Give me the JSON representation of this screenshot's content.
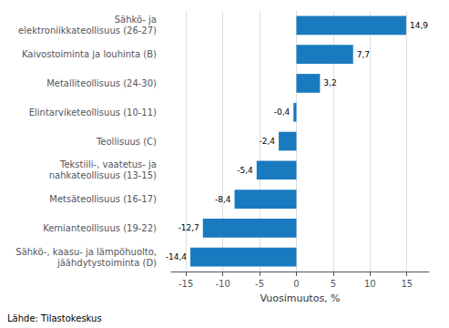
{
  "chart_data": {
    "type": "bar",
    "orientation": "horizontal",
    "categories": [
      "Sähkö-, kaasu- ja lämpöhuolto,\njäähdytystoiminta (D)",
      "Kemianteollisuus (19-22)",
      "Metsäteollisuus (16-17)",
      "Tekstiili-, vaatetus- ja\nnahkateollisuus (13-15)",
      "Teollisuus (C)",
      "Elintarviketeollisuus (10-11)",
      "Metalliteollisuus (24-30)",
      "Kaivostoiminta ja louhinta (B)",
      "Sähkö- ja\nelektroniikkateollisuus (26-27)"
    ],
    "values": [
      -14.4,
      -12.7,
      -8.4,
      -5.4,
      -2.4,
      -0.4,
      3.2,
      7.7,
      14.9
    ],
    "value_labels": [
      "-14,4",
      "-12,7",
      "-8,4",
      "-5,4",
      "-2,4",
      "-0,4",
      "3,2",
      "7,7",
      "14,9"
    ],
    "data_labels": true,
    "color": "#1a7abf",
    "xlabel": "Vuosimuutos, %",
    "xlim": [
      -17,
      18
    ],
    "xticks": [
      -15,
      -10,
      -5,
      0,
      5,
      10,
      15
    ],
    "grid": true,
    "annotations": [
      "Lähde: Tilastokeskus"
    ]
  }
}
